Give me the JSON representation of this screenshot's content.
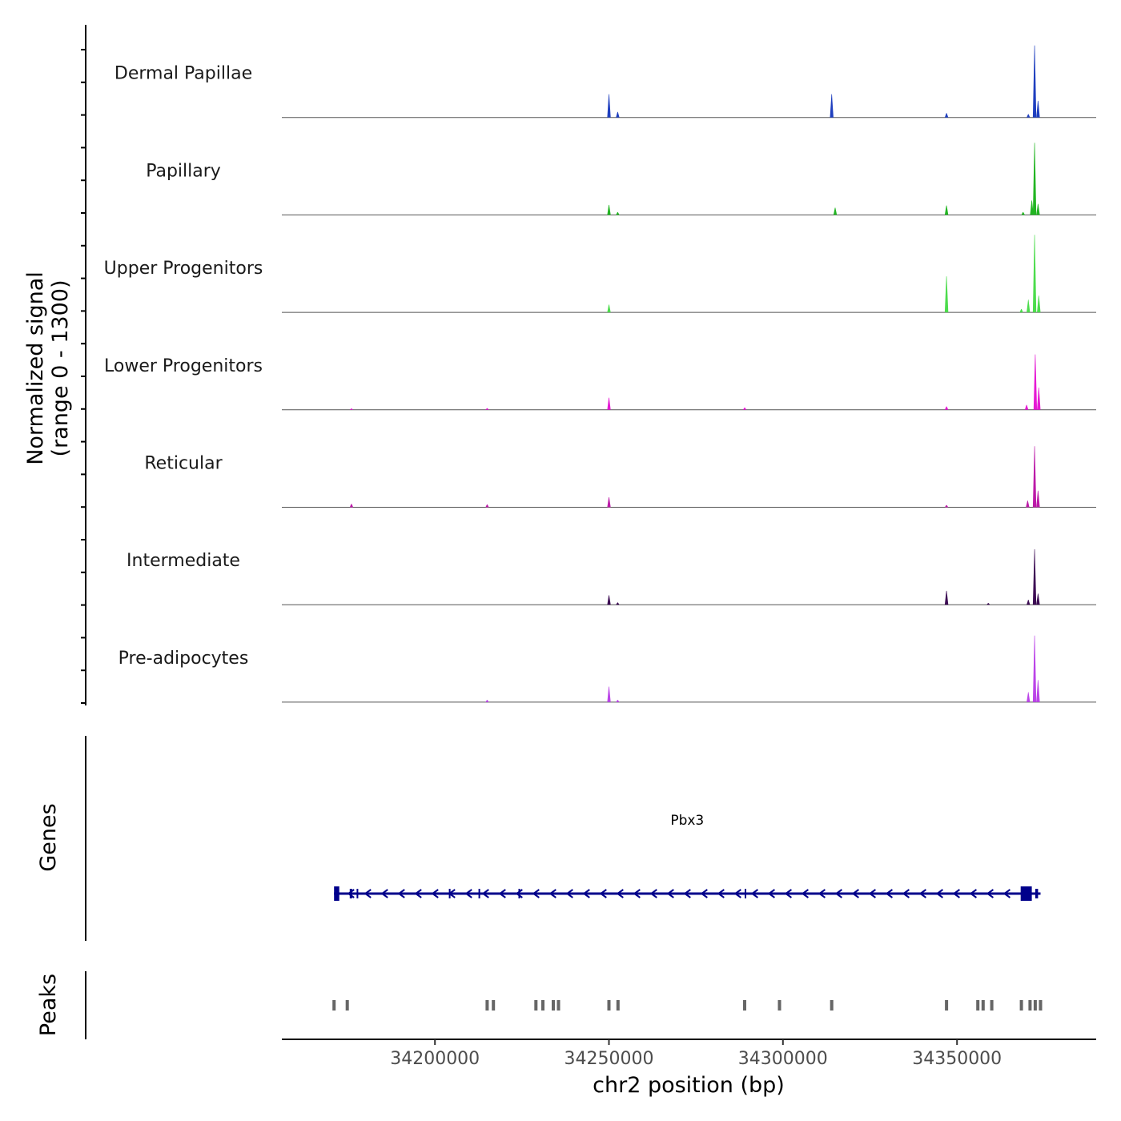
{
  "chart_data": {
    "type": "area",
    "title": "",
    "ylabel_signal": [
      "Normalized signal",
      "(range 0 - 1300)"
    ],
    "ylabel_genes": "Genes",
    "ylabel_peaks": "Peaks",
    "xlabel": "chr2 position (bp)",
    "xlim": [
      34156000,
      34390000
    ],
    "ylim": [
      0,
      1300
    ],
    "xticks": [
      34200000,
      34250000,
      34300000,
      34350000
    ],
    "xtick_labels": [
      "34200000",
      "34250000",
      "34300000",
      "34350000"
    ],
    "tracks": [
      {
        "name": "Dermal Papillae",
        "color": "#1f3fbf",
        "peaks": [
          [
            34250000,
            420
          ],
          [
            34252500,
            100
          ],
          [
            34314000,
            420
          ],
          [
            34347000,
            80
          ],
          [
            34370500,
            60
          ],
          [
            34372300,
            1300
          ],
          [
            34373300,
            300
          ]
        ]
      },
      {
        "name": "Papillary",
        "color": "#22b522",
        "peaks": [
          [
            34250000,
            180
          ],
          [
            34252500,
            50
          ],
          [
            34315000,
            130
          ],
          [
            34347000,
            170
          ],
          [
            34369000,
            50
          ],
          [
            34371500,
            260
          ],
          [
            34372300,
            1300
          ],
          [
            34373300,
            200
          ]
        ]
      },
      {
        "name": "Upper Progenitors",
        "color": "#4cdc4c",
        "peaks": [
          [
            34250000,
            140
          ],
          [
            34347000,
            650
          ],
          [
            34368500,
            60
          ],
          [
            34370500,
            230
          ],
          [
            34372300,
            1400
          ],
          [
            34373500,
            300
          ]
        ]
      },
      {
        "name": "Lower Progenitors",
        "color": "#e619d4",
        "peaks": [
          [
            34176000,
            25
          ],
          [
            34215000,
            30
          ],
          [
            34250000,
            220
          ],
          [
            34289000,
            40
          ],
          [
            34347000,
            60
          ],
          [
            34370000,
            90
          ],
          [
            34372500,
            1000
          ],
          [
            34373500,
            400
          ]
        ]
      },
      {
        "name": "Reticular",
        "color": "#bc1aa8",
        "peaks": [
          [
            34176000,
            60
          ],
          [
            34215000,
            50
          ],
          [
            34250000,
            180
          ],
          [
            34347000,
            40
          ],
          [
            34370300,
            120
          ],
          [
            34372300,
            1100
          ],
          [
            34373300,
            300
          ]
        ]
      },
      {
        "name": "Intermediate",
        "color": "#3d0d54",
        "peaks": [
          [
            34250000,
            170
          ],
          [
            34252500,
            40
          ],
          [
            34347000,
            250
          ],
          [
            34359000,
            30
          ],
          [
            34370500,
            90
          ],
          [
            34372300,
            1000
          ],
          [
            34373300,
            200
          ]
        ]
      },
      {
        "name": "Pre-adipocytes",
        "color": "#bb44e8",
        "peaks": [
          [
            34215000,
            40
          ],
          [
            34250000,
            280
          ],
          [
            34252500,
            40
          ],
          [
            34370500,
            180
          ],
          [
            34372300,
            1200
          ],
          [
            34373300,
            400
          ]
        ]
      }
    ],
    "gene": {
      "name": "Pbx3",
      "strand": "-",
      "color": "#00008b",
      "start": 34171000,
      "end": 34374000,
      "exons": [
        [
          34171000,
          34172500
        ],
        [
          34175500,
          34176200
        ],
        [
          34177500,
          34177900
        ],
        [
          34204000,
          34204300
        ],
        [
          34212500,
          34212800
        ],
        [
          34224000,
          34224400
        ],
        [
          34289000,
          34289300
        ],
        [
          34368300,
          34371500
        ],
        [
          34372500,
          34373300
        ]
      ]
    },
    "peaks_track": {
      "color": "#666666",
      "positions": [
        34171000,
        34174800,
        34215000,
        34216800,
        34229000,
        34231000,
        34234000,
        34235500,
        34250000,
        34252600,
        34289000,
        34299000,
        34314000,
        34347000,
        34356000,
        34357500,
        34360000,
        34368500,
        34371000,
        34372500,
        34374000
      ]
    }
  }
}
